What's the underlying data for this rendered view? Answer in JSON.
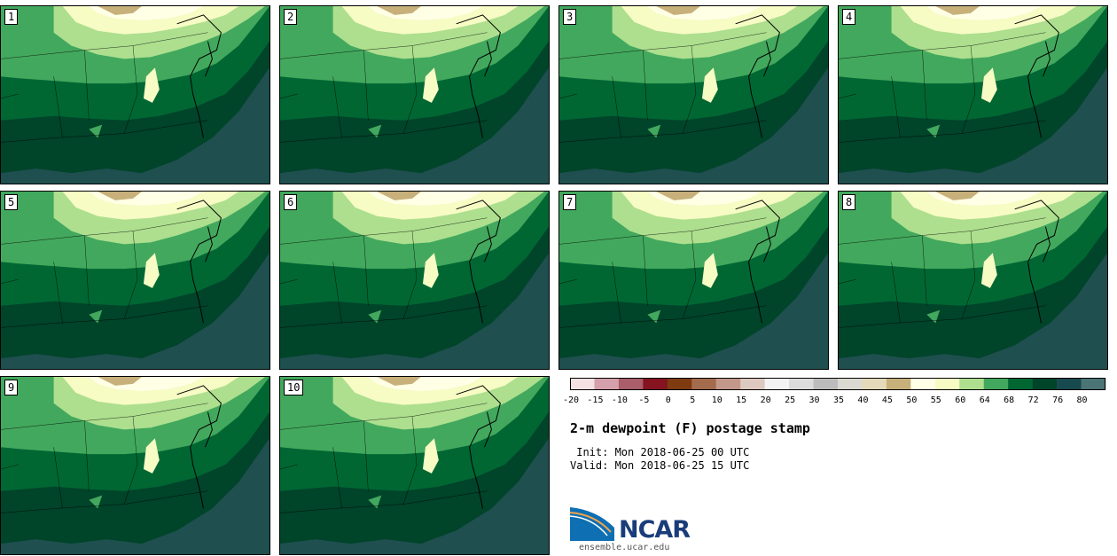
{
  "stamps": [
    {
      "label": "1"
    },
    {
      "label": "2"
    },
    {
      "label": "3"
    },
    {
      "label": "4"
    },
    {
      "label": "5"
    },
    {
      "label": "6"
    },
    {
      "label": "7"
    },
    {
      "label": "8"
    },
    {
      "label": "9"
    },
    {
      "label": "10"
    }
  ],
  "colorbar": {
    "ticks": [
      "-20",
      "-15",
      "-10",
      "-5",
      "0",
      "5",
      "10",
      "15",
      "20",
      "25",
      "30",
      "35",
      "40",
      "45",
      "50",
      "55",
      "60",
      "64",
      "68",
      "72",
      "76",
      "80"
    ],
    "colors": [
      "#f4e1e3",
      "#d4a0ac",
      "#a95e69",
      "#861320",
      "#7f3b10",
      "#a56b4d",
      "#c3988a",
      "#dec9c0",
      "#f3f3f3",
      "#dcdcdc",
      "#bcbcbc",
      "#dadad2",
      "#e4d9b9",
      "#c8b07b",
      "#ffffe6",
      "#f7fbc4",
      "#addf8e",
      "#42a85d",
      "#006733",
      "#00442a",
      "#174a4e",
      "#4b7476"
    ]
  },
  "title": "2-m dewpoint (F) postage stamp",
  "init": " Init: Mon 2018-06-25 00 UTC",
  "valid": "Valid: Mon 2018-06-25 15 UTC",
  "logo": {
    "text": "NCAR",
    "url": "ensemble.ucar.edu"
  }
}
